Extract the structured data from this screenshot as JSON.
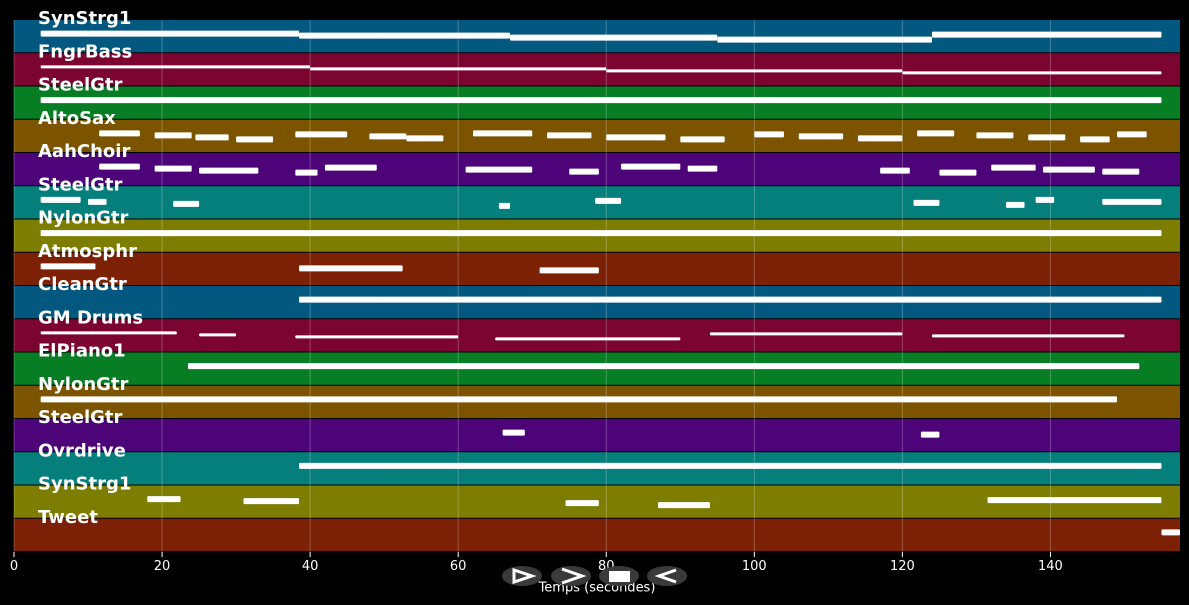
{
  "chart_data": {
    "type": "piano-roll",
    "xlabel": "Temps (secondes)",
    "xlim": [
      0,
      157.5
    ],
    "xticks": [
      0,
      20,
      40,
      60,
      80,
      100,
      120,
      140
    ],
    "grid": true,
    "tracks": [
      {
        "name": "SynStrg1",
        "color": "#02587f",
        "notes": [
          [
            3.6,
            38.5
          ],
          [
            38.5,
            67
          ],
          [
            67,
            95
          ],
          [
            95,
            124
          ],
          [
            124,
            155
          ]
        ]
      },
      {
        "name": "FngrBass",
        "color": "#7c0431",
        "notes": [
          [
            3.6,
            40
          ],
          [
            40,
            80
          ],
          [
            80,
            120
          ],
          [
            120,
            155
          ]
        ]
      },
      {
        "name": "SteelGtr",
        "color": "#077d24",
        "notes": [
          [
            3.6,
            155
          ]
        ]
      },
      {
        "name": "AltoSax",
        "color": "#7c5400",
        "notes": [
          [
            11.5,
            17
          ],
          [
            19,
            24
          ],
          [
            24.5,
            29
          ],
          [
            30,
            35
          ],
          [
            38,
            45
          ],
          [
            48,
            53
          ],
          [
            53,
            58
          ],
          [
            62,
            70
          ],
          [
            72,
            78
          ],
          [
            80,
            88
          ],
          [
            90,
            96
          ],
          [
            100,
            104
          ],
          [
            106,
            112
          ],
          [
            114,
            120
          ],
          [
            122,
            127
          ],
          [
            130,
            135
          ],
          [
            137,
            142
          ],
          [
            144,
            148
          ],
          [
            149,
            153
          ]
        ]
      },
      {
        "name": "AahChoir",
        "color": "#4e0479",
        "notes": [
          [
            11.5,
            17
          ],
          [
            19,
            24
          ],
          [
            25,
            33
          ],
          [
            38,
            41
          ],
          [
            42,
            49
          ],
          [
            61,
            70
          ],
          [
            75,
            79
          ],
          [
            82,
            90
          ],
          [
            91,
            95
          ],
          [
            117,
            121
          ],
          [
            125,
            130
          ],
          [
            132,
            138
          ],
          [
            139,
            146
          ],
          [
            147,
            152
          ]
        ]
      },
      {
        "name": "SteelGtr",
        "color": "#057f7c",
        "notes": [
          [
            3.6,
            9
          ],
          [
            10,
            12.5
          ],
          [
            21.5,
            25
          ],
          [
            65.5,
            67
          ],
          [
            78.5,
            82
          ],
          [
            121.5,
            125
          ],
          [
            134,
            136.5
          ],
          [
            138,
            140.5
          ],
          [
            147,
            155
          ]
        ]
      },
      {
        "name": "NylonGtr",
        "color": "#7d7d02",
        "notes": [
          [
            3.6,
            155
          ]
        ]
      },
      {
        "name": "Atmosphr",
        "color": "#7c2006",
        "notes": [
          [
            3.6,
            11
          ],
          [
            38.5,
            52.5
          ],
          [
            71,
            79
          ]
        ]
      },
      {
        "name": "CleanGtr",
        "color": "#02587f",
        "notes": [
          [
            38.5,
            155
          ]
        ]
      },
      {
        "name": "GM Drums",
        "color": "#7c0431",
        "notes": [
          [
            3.6,
            22
          ],
          [
            25,
            30
          ],
          [
            38,
            60
          ],
          [
            65,
            90
          ],
          [
            94,
            120
          ],
          [
            124,
            150
          ]
        ]
      },
      {
        "name": "ElPiano1",
        "color": "#077d24",
        "notes": [
          [
            23.5,
            152
          ]
        ]
      },
      {
        "name": "NylonGtr",
        "color": "#7c5400",
        "notes": [
          [
            3.6,
            149
          ]
        ]
      },
      {
        "name": "SteelGtr",
        "color": "#4e0479",
        "notes": [
          [
            66,
            69
          ],
          [
            122.5,
            125
          ]
        ]
      },
      {
        "name": "Ovrdrive",
        "color": "#057f7c",
        "notes": [
          [
            38.5,
            155
          ]
        ]
      },
      {
        "name": "SynStrg1",
        "color": "#7d7d02",
        "notes": [
          [
            18,
            22.5
          ],
          [
            31,
            38.5
          ],
          [
            74.5,
            79
          ],
          [
            87,
            94
          ],
          [
            131.5,
            155
          ]
        ]
      },
      {
        "name": "Tweet",
        "color": "#7c2006",
        "notes": [
          [
            155,
            157.5
          ]
        ]
      }
    ]
  }
}
